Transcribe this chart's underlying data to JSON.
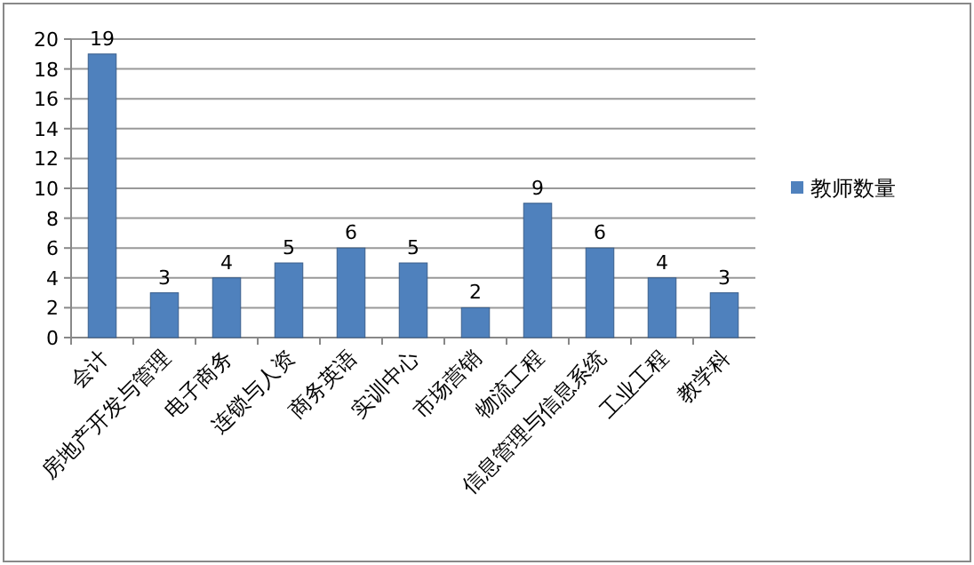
{
  "chart_data": {
    "type": "bar",
    "categories": [
      "会计",
      "房地产开发与管理",
      "电子商务",
      "连锁与人资",
      "商务英语",
      "实训中心",
      "市场营销",
      "物流工程",
      "信息管理与信息系统",
      "工业工程",
      "教学科"
    ],
    "series": [
      {
        "name": "教师数量",
        "color": "#4f81bd",
        "values": [
          19,
          3,
          4,
          5,
          6,
          5,
          2,
          9,
          6,
          4,
          3
        ]
      }
    ],
    "ylim": [
      0,
      20
    ],
    "yticks": [
      0,
      2,
      4,
      6,
      8,
      10,
      12,
      14,
      16,
      18,
      20
    ],
    "grid": "y",
    "legend": "right",
    "data_labels": true
  }
}
